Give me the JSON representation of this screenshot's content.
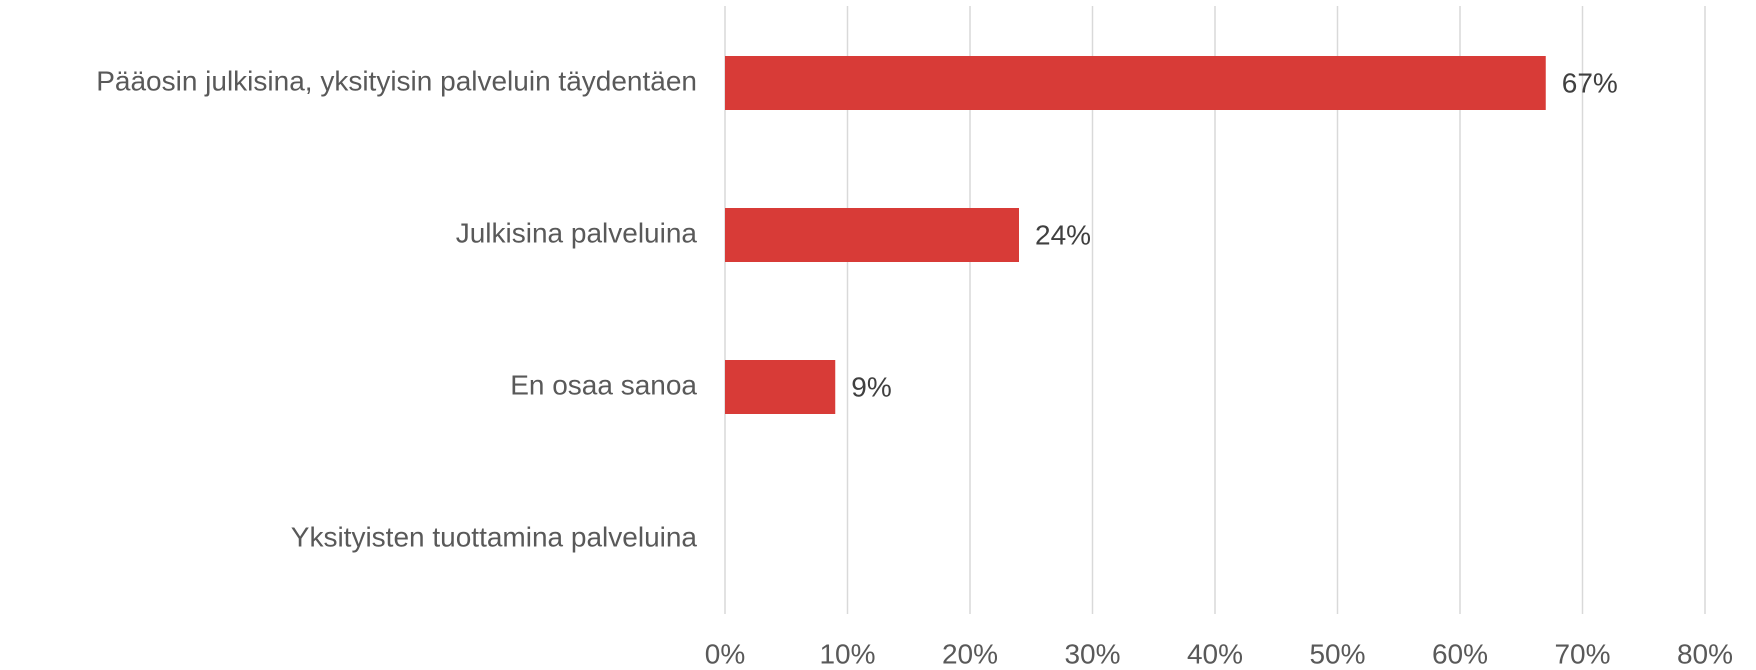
{
  "chart_data": {
    "type": "bar",
    "orientation": "horizontal",
    "categories": [
      "Pääosin julkisina, yksityisin palveluin täydentäen",
      "Julkisina palveluina",
      "En osaa sanoa",
      "Yksityisten tuottamina palveluina"
    ],
    "values": [
      67,
      24,
      9,
      0
    ],
    "value_labels": [
      "67%",
      "24%",
      "9%",
      null
    ],
    "color": "#d83b37",
    "xlim": [
      0,
      80
    ],
    "xticks": [
      {
        "value": 0,
        "label": "0%"
      },
      {
        "value": 10,
        "label": "10%"
      },
      {
        "value": 20,
        "label": "20%"
      },
      {
        "value": 30,
        "label": "30%"
      },
      {
        "value": 40,
        "label": "40%"
      },
      {
        "value": 50,
        "label": "50%"
      },
      {
        "value": 60,
        "label": "60%"
      },
      {
        "value": 70,
        "label": "70%"
      },
      {
        "value": 80,
        "label": "80%"
      }
    ],
    "grid": true
  }
}
